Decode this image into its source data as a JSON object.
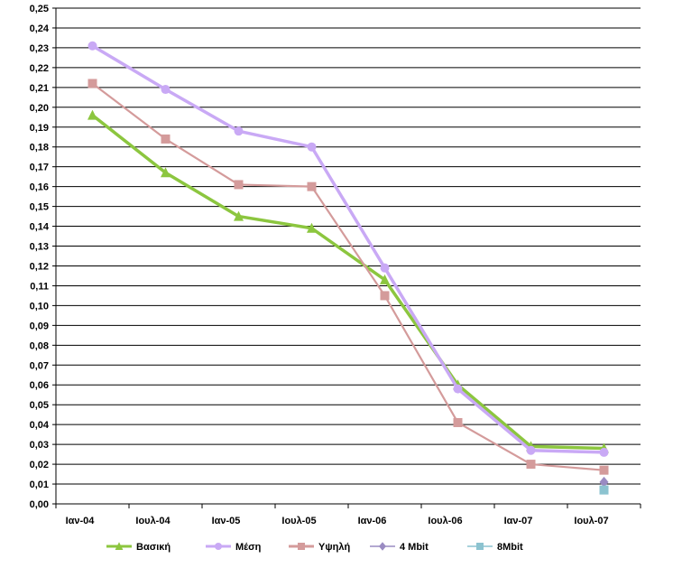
{
  "chart_data": {
    "type": "line",
    "title": "",
    "xlabel": "",
    "ylabel": "",
    "categories": [
      "Ιαν-04",
      "Ιουλ-04",
      "Ιαν-05",
      "Ιουλ-05",
      "Ιαν-06",
      "Ιουλ-06",
      "Ιαν-07",
      "Ιουλ-07"
    ],
    "ylim": [
      0,
      0.25
    ],
    "yticks": [
      "0,00",
      "0,01",
      "0,02",
      "0,03",
      "0,04",
      "0,05",
      "0,06",
      "0,07",
      "0,08",
      "0,09",
      "0,10",
      "0,11",
      "0,12",
      "0,13",
      "0,14",
      "0,15",
      "0,16",
      "0,17",
      "0,18",
      "0,19",
      "0,20",
      "0,21",
      "0,22",
      "0,23",
      "0,24",
      "0,25"
    ],
    "grid": true,
    "legend_position": "bottom",
    "series": [
      {
        "name": "Βασική",
        "color": "#8CC63F",
        "marker": "triangle",
        "values": [
          0.196,
          0.167,
          0.145,
          0.139,
          0.113,
          0.06,
          0.029,
          0.028
        ]
      },
      {
        "name": "Μέση",
        "color": "#C9A9F5",
        "marker": "circle",
        "values": [
          0.231,
          0.209,
          0.188,
          0.18,
          0.119,
          0.058,
          0.027,
          0.026
        ]
      },
      {
        "name": "Υψηλή",
        "color": "#D49B9B",
        "marker": "square",
        "values": [
          0.212,
          0.184,
          0.161,
          0.16,
          0.105,
          0.041,
          0.02,
          0.017
        ]
      },
      {
        "name": "4 Mbit",
        "color": "#9A8BC2",
        "marker": "diamond",
        "values": [
          null,
          null,
          null,
          null,
          null,
          null,
          null,
          0.011
        ]
      },
      {
        "name": "8Mbit",
        "color": "#8CC3D0",
        "marker": "square",
        "values": [
          null,
          null,
          null,
          null,
          null,
          null,
          null,
          0.007
        ]
      }
    ]
  }
}
